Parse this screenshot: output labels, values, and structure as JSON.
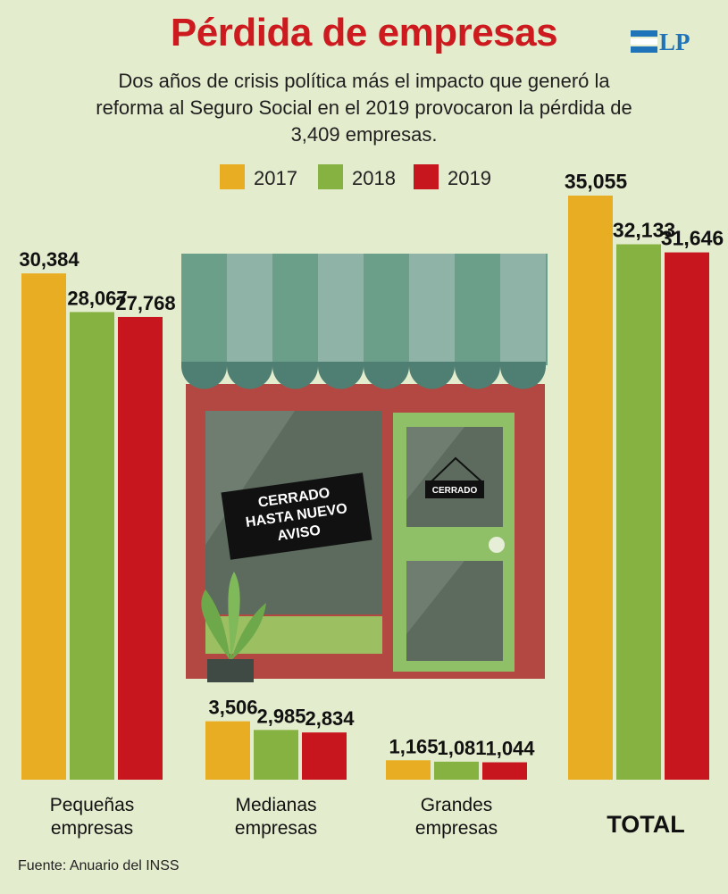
{
  "header": {
    "title": "Pérdida de empresas",
    "subtitle": "Dos años de crisis política más el impacto que generó la reforma al Seguro Social en el 2019 provocaron la pérdida de 3,409 empresas.",
    "logo": "LP"
  },
  "shop_signs": {
    "window_sign": [
      "CERRADO",
      "HASTA NUEVO",
      "AVISO"
    ],
    "door_sign": "CERRADO"
  },
  "chart_data": {
    "type": "bar",
    "categories": [
      "Pequeñas empresas",
      "Medianas empresas",
      "Grandes empresas",
      "TOTAL"
    ],
    "series": [
      {
        "name": "2017",
        "color": "#e8ad22",
        "values": [
          30384,
          3506,
          1165,
          35055
        ]
      },
      {
        "name": "2018",
        "color": "#86b241",
        "values": [
          28067,
          2985,
          1081,
          32133
        ]
      },
      {
        "name": "2019",
        "color": "#c8161e",
        "values": [
          27768,
          2834,
          1044,
          31646
        ]
      }
    ],
    "value_labels": [
      [
        "30,384",
        "28,067",
        "27,768"
      ],
      [
        "3,506",
        "2,985",
        "2,834"
      ],
      [
        "1,165",
        "1,081",
        "1,044"
      ],
      [
        "35,055",
        "32,133",
        "31,646"
      ]
    ],
    "category_labels": [
      [
        "Pequeñas",
        "empresas"
      ],
      [
        "Medianas",
        "empresas"
      ],
      [
        "Grandes",
        "empresas"
      ],
      [
        "TOTAL"
      ]
    ],
    "legend_position": "top-center",
    "grid": false
  },
  "footer": {
    "source": "Fuente: Anuario del INSS"
  }
}
